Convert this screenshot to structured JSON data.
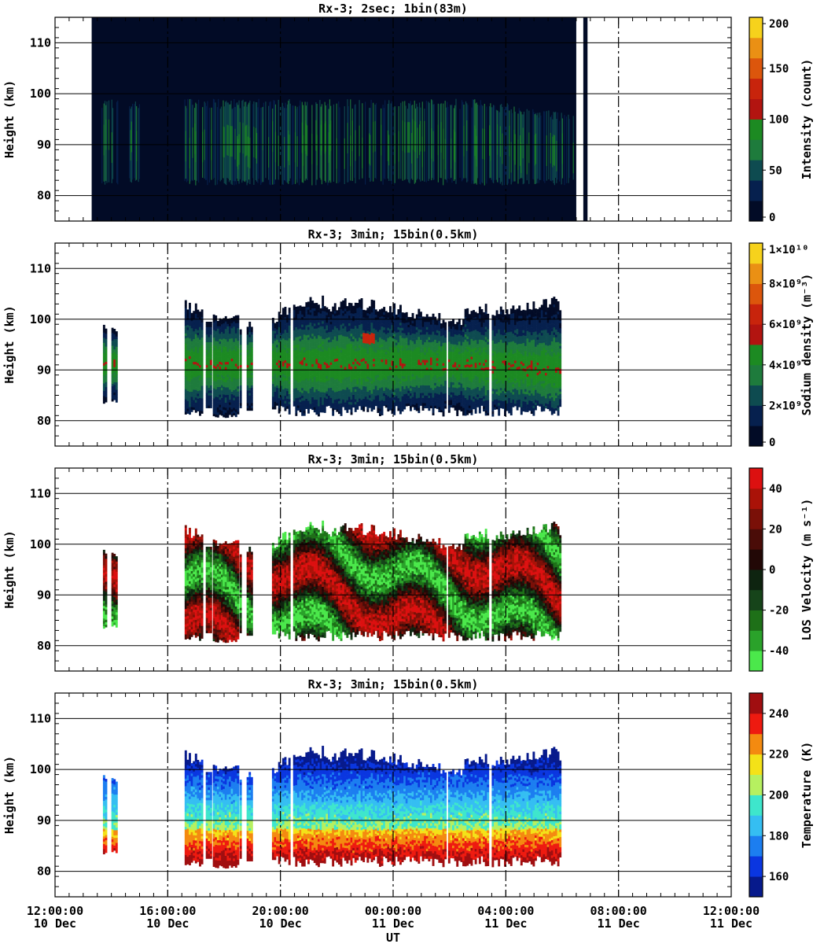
{
  "x_axis": {
    "label": "UT",
    "ticks": [
      {
        "time": "12:00:00",
        "date": "10 Dec"
      },
      {
        "time": "16:00:00",
        "date": "10 Dec"
      },
      {
        "time": "20:00:00",
        "date": "10 Dec"
      },
      {
        "time": "00:00:00",
        "date": "11 Dec"
      },
      {
        "time": "04:00:00",
        "date": "11 Dec"
      },
      {
        "time": "08:00:00",
        "date": "11 Dec"
      },
      {
        "time": "12:00:00",
        "date": "11 Dec"
      }
    ]
  },
  "colors": {
    "intensity": [
      "#020b26",
      "#06204e",
      "#0e4b50",
      "#1e7b3c",
      "#1c8a22",
      "#b21410",
      "#c8240c",
      "#dc560c",
      "#ea9014",
      "#f6d21c"
    ],
    "density": [
      "#020b26",
      "#06204e",
      "#0e4b50",
      "#1e7b3c",
      "#1c8a22",
      "#b21410",
      "#c8240c",
      "#dc560c",
      "#ea9014",
      "#f6d21c"
    ],
    "velocity": [
      "#4be84b",
      "#2aa22a",
      "#1e7018",
      "#16441a",
      "#0e2410",
      "#220806",
      "#4a0c08",
      "#7a1008",
      "#aa1208",
      "#dc1010"
    ],
    "temperature": [
      "#071a8c",
      "#0a36e0",
      "#1c7ef0",
      "#35bef2",
      "#3ee6cc",
      "#b6f060",
      "#f4e218",
      "#f48a10",
      "#ee1a10",
      "#a00e10"
    ]
  },
  "chart_data": [
    {
      "type": "heatmap",
      "title": "Rx-3;  2sec; 1bin(83m)",
      "xlabel": "UT",
      "ylabel": "Height (km)",
      "x_range_hours_ut": [
        12,
        36
      ],
      "ylim": [
        75,
        115
      ],
      "y_ticks": [
        80,
        90,
        100,
        110
      ],
      "colorbar": {
        "label": "Intensity (count)",
        "min": 0,
        "max": 200,
        "ticks": [
          "0",
          "50",
          "100",
          "150",
          "200"
        ]
      },
      "data_coverage_ut": [
        [
          13.3,
          30.5
        ],
        [
          30.75,
          30.9
        ]
      ],
      "layer_km": {
        "bottom": 82,
        "top": 98,
        "peak": 90
      }
    },
    {
      "type": "heatmap",
      "title": "Rx-3; 3min; 15bin(0.5km)",
      "xlabel": "UT",
      "ylabel": "Height (km)",
      "x_range_hours_ut": [
        12,
        36
      ],
      "ylim": [
        75,
        115
      ],
      "y_ticks": [
        80,
        90,
        100,
        110
      ],
      "colorbar": {
        "label": "Sodium density (m⁻³)",
        "min": 0,
        "max": 10000000000.0,
        "ticks": [
          "0",
          "2×10⁹",
          "4×10⁹",
          "6×10⁹",
          "8×10⁹",
          "1×10¹⁰"
        ]
      },
      "data_segments_ut": [
        [
          13.7,
          13.8
        ],
        [
          14.0,
          14.2
        ],
        [
          16.6,
          17.2
        ],
        [
          17.35,
          17.5
        ],
        [
          17.6,
          17.9
        ],
        [
          17.95,
          18.5
        ],
        [
          18.55,
          18.62
        ],
        [
          18.8,
          18.95
        ],
        [
          19.7,
          20.3
        ],
        [
          20.45,
          25.85
        ],
        [
          25.95,
          27.4
        ],
        [
          27.5,
          29.9
        ]
      ],
      "layer_km": {
        "bottom": 82,
        "top": 101,
        "peak": 91
      }
    },
    {
      "type": "heatmap",
      "title": "Rx-3; 3min; 15bin(0.5km)",
      "xlabel": "UT",
      "ylabel": "Height (km)",
      "x_range_hours_ut": [
        12,
        36
      ],
      "ylim": [
        75,
        115
      ],
      "y_ticks": [
        80,
        90,
        100,
        110
      ],
      "colorbar": {
        "label": "LOS Velocity (m s⁻¹)",
        "min": -50,
        "max": 50,
        "ticks": [
          "-40",
          "-20",
          "0",
          "20",
          "40"
        ]
      },
      "data_segments_ut": [
        [
          13.7,
          13.8
        ],
        [
          14.0,
          14.2
        ],
        [
          16.6,
          17.2
        ],
        [
          17.35,
          17.5
        ],
        [
          17.6,
          17.9
        ],
        [
          17.95,
          18.5
        ],
        [
          18.55,
          18.62
        ],
        [
          18.8,
          18.95
        ],
        [
          19.7,
          20.3
        ],
        [
          20.45,
          25.85
        ],
        [
          25.95,
          27.4
        ],
        [
          27.5,
          29.9
        ]
      ]
    },
    {
      "type": "heatmap",
      "title": "Rx-3; 3min; 15bin(0.5km)",
      "xlabel": "UT",
      "ylabel": "Height (km)",
      "x_range_hours_ut": [
        12,
        36
      ],
      "ylim": [
        75,
        115
      ],
      "y_ticks": [
        80,
        90,
        100,
        110
      ],
      "colorbar": {
        "label": "Temperature (K)",
        "min": 150,
        "max": 250,
        "ticks": [
          "160",
          "180",
          "200",
          "220",
          "240"
        ]
      },
      "data_segments_ut": [
        [
          13.7,
          13.8
        ],
        [
          14.0,
          14.2
        ],
        [
          16.6,
          17.2
        ],
        [
          17.35,
          17.5
        ],
        [
          17.6,
          17.9
        ],
        [
          17.95,
          18.5
        ],
        [
          18.55,
          18.62
        ],
        [
          18.8,
          18.95
        ],
        [
          19.7,
          20.3
        ],
        [
          20.45,
          25.85
        ],
        [
          25.95,
          27.4
        ],
        [
          27.5,
          29.9
        ]
      ]
    }
  ]
}
